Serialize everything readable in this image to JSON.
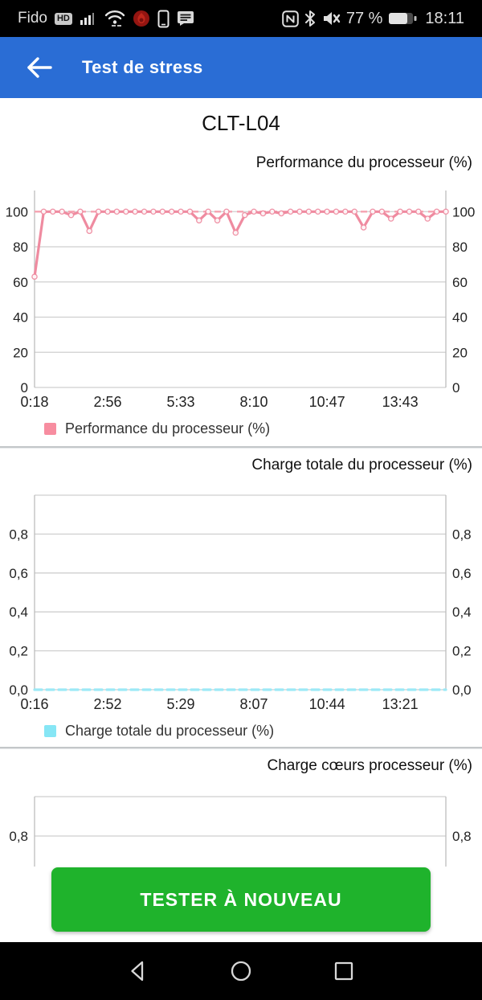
{
  "status_bar": {
    "carrier": "Fido",
    "hd_badge": "HD",
    "battery_percent": "77 %",
    "battery_level": 0.77,
    "time": "18:11",
    "icons_left": [
      "signal-bars-icon",
      "wifi-icon",
      "stress-app-icon",
      "vibrate-phone-icon",
      "messages-icon"
    ],
    "icons_right": [
      "nfc-icon",
      "bluetooth-icon",
      "muted-icon",
      "battery-icon"
    ]
  },
  "app_bar": {
    "title": "Test de stress",
    "color": "#2a6dd5",
    "back_icon": "back-arrow-icon"
  },
  "device_title": "CLT-L04",
  "chart_data": [
    {
      "type": "line",
      "title": "Performance du processeur (%)",
      "legend": {
        "label": "Performance du processeur (%)",
        "swatch": "#f78da0"
      },
      "ylim": [
        0,
        112
      ],
      "y_ticks": [
        {
          "v": 0,
          "label": "0"
        },
        {
          "v": 20,
          "label": "20"
        },
        {
          "v": 40,
          "label": "40"
        },
        {
          "v": 60,
          "label": "60"
        },
        {
          "v": 80,
          "label": "80"
        },
        {
          "v": 100,
          "label": "100"
        }
      ],
      "x_tick_labels": [
        "0:18",
        "2:56",
        "5:33",
        "8:10",
        "10:47",
        "13:43"
      ],
      "x_tick_point_indices": [
        0,
        8,
        16,
        24,
        32,
        40
      ],
      "grid": true,
      "legend_position": "bottom-left",
      "ref_line": {
        "value": 100,
        "color": "#f6a6b4",
        "style": "dashed"
      },
      "series": {
        "name": "Performance du processeur (%)",
        "color": "#ef8ba0",
        "line_style": "solid",
        "markers": true,
        "values": [
          63,
          100,
          100,
          100,
          98,
          100,
          89,
          100,
          100,
          100,
          100,
          100,
          100,
          100,
          100,
          100,
          100,
          100,
          95,
          100,
          95,
          100,
          88,
          98,
          100,
          99,
          100,
          99,
          100,
          100,
          100,
          100,
          100,
          100,
          100,
          100,
          91,
          100,
          100,
          96,
          100,
          100,
          100,
          96,
          100,
          100
        ]
      }
    },
    {
      "type": "line",
      "title": "Charge totale du processeur (%)",
      "legend": {
        "label": "Charge totale du processeur (%)",
        "swatch": "#86e6f5"
      },
      "ylim": [
        0,
        1.0
      ],
      "y_ticks": [
        {
          "v": 0.0,
          "label": "0,0"
        },
        {
          "v": 0.2,
          "label": "0,2"
        },
        {
          "v": 0.4,
          "label": "0,4"
        },
        {
          "v": 0.6,
          "label": "0,6"
        },
        {
          "v": 0.8,
          "label": "0,8"
        },
        {
          "v": 1.0,
          "label": ""
        }
      ],
      "x_tick_labels": [
        "0:16",
        "2:52",
        "5:29",
        "8:07",
        "10:44",
        "13:21"
      ],
      "x_tick_point_indices": [
        0,
        8,
        16,
        24,
        32,
        40
      ],
      "grid": true,
      "legend_position": "bottom-left",
      "series": {
        "name": "Charge totale du processeur (%)",
        "color": "#9ce9f6",
        "line_style": "dashed",
        "markers": false,
        "values": [
          0,
          0,
          0,
          0,
          0,
          0,
          0,
          0,
          0,
          0,
          0,
          0,
          0,
          0,
          0,
          0,
          0,
          0,
          0,
          0,
          0,
          0,
          0,
          0,
          0,
          0,
          0,
          0,
          0,
          0,
          0,
          0,
          0,
          0,
          0,
          0,
          0,
          0,
          0,
          0,
          0,
          0,
          0,
          0,
          0,
          0
        ]
      }
    },
    {
      "type": "line",
      "title": "Charge cœurs processeur (%)",
      "note": "chart clipped by button; only top of plot visible",
      "ylim": [
        0,
        1.0
      ],
      "y_ticks": [
        {
          "v": 0.8,
          "label": "0,8"
        },
        {
          "v": 1.0,
          "label": ""
        }
      ],
      "x_tick_labels": [],
      "x_tick_point_indices": [],
      "grid": true,
      "series": null
    }
  ],
  "button": {
    "label": "TESTER À NOUVEAU",
    "color": "#1fb32c"
  },
  "nav_bar": {
    "items": [
      "back",
      "home",
      "recents"
    ]
  }
}
